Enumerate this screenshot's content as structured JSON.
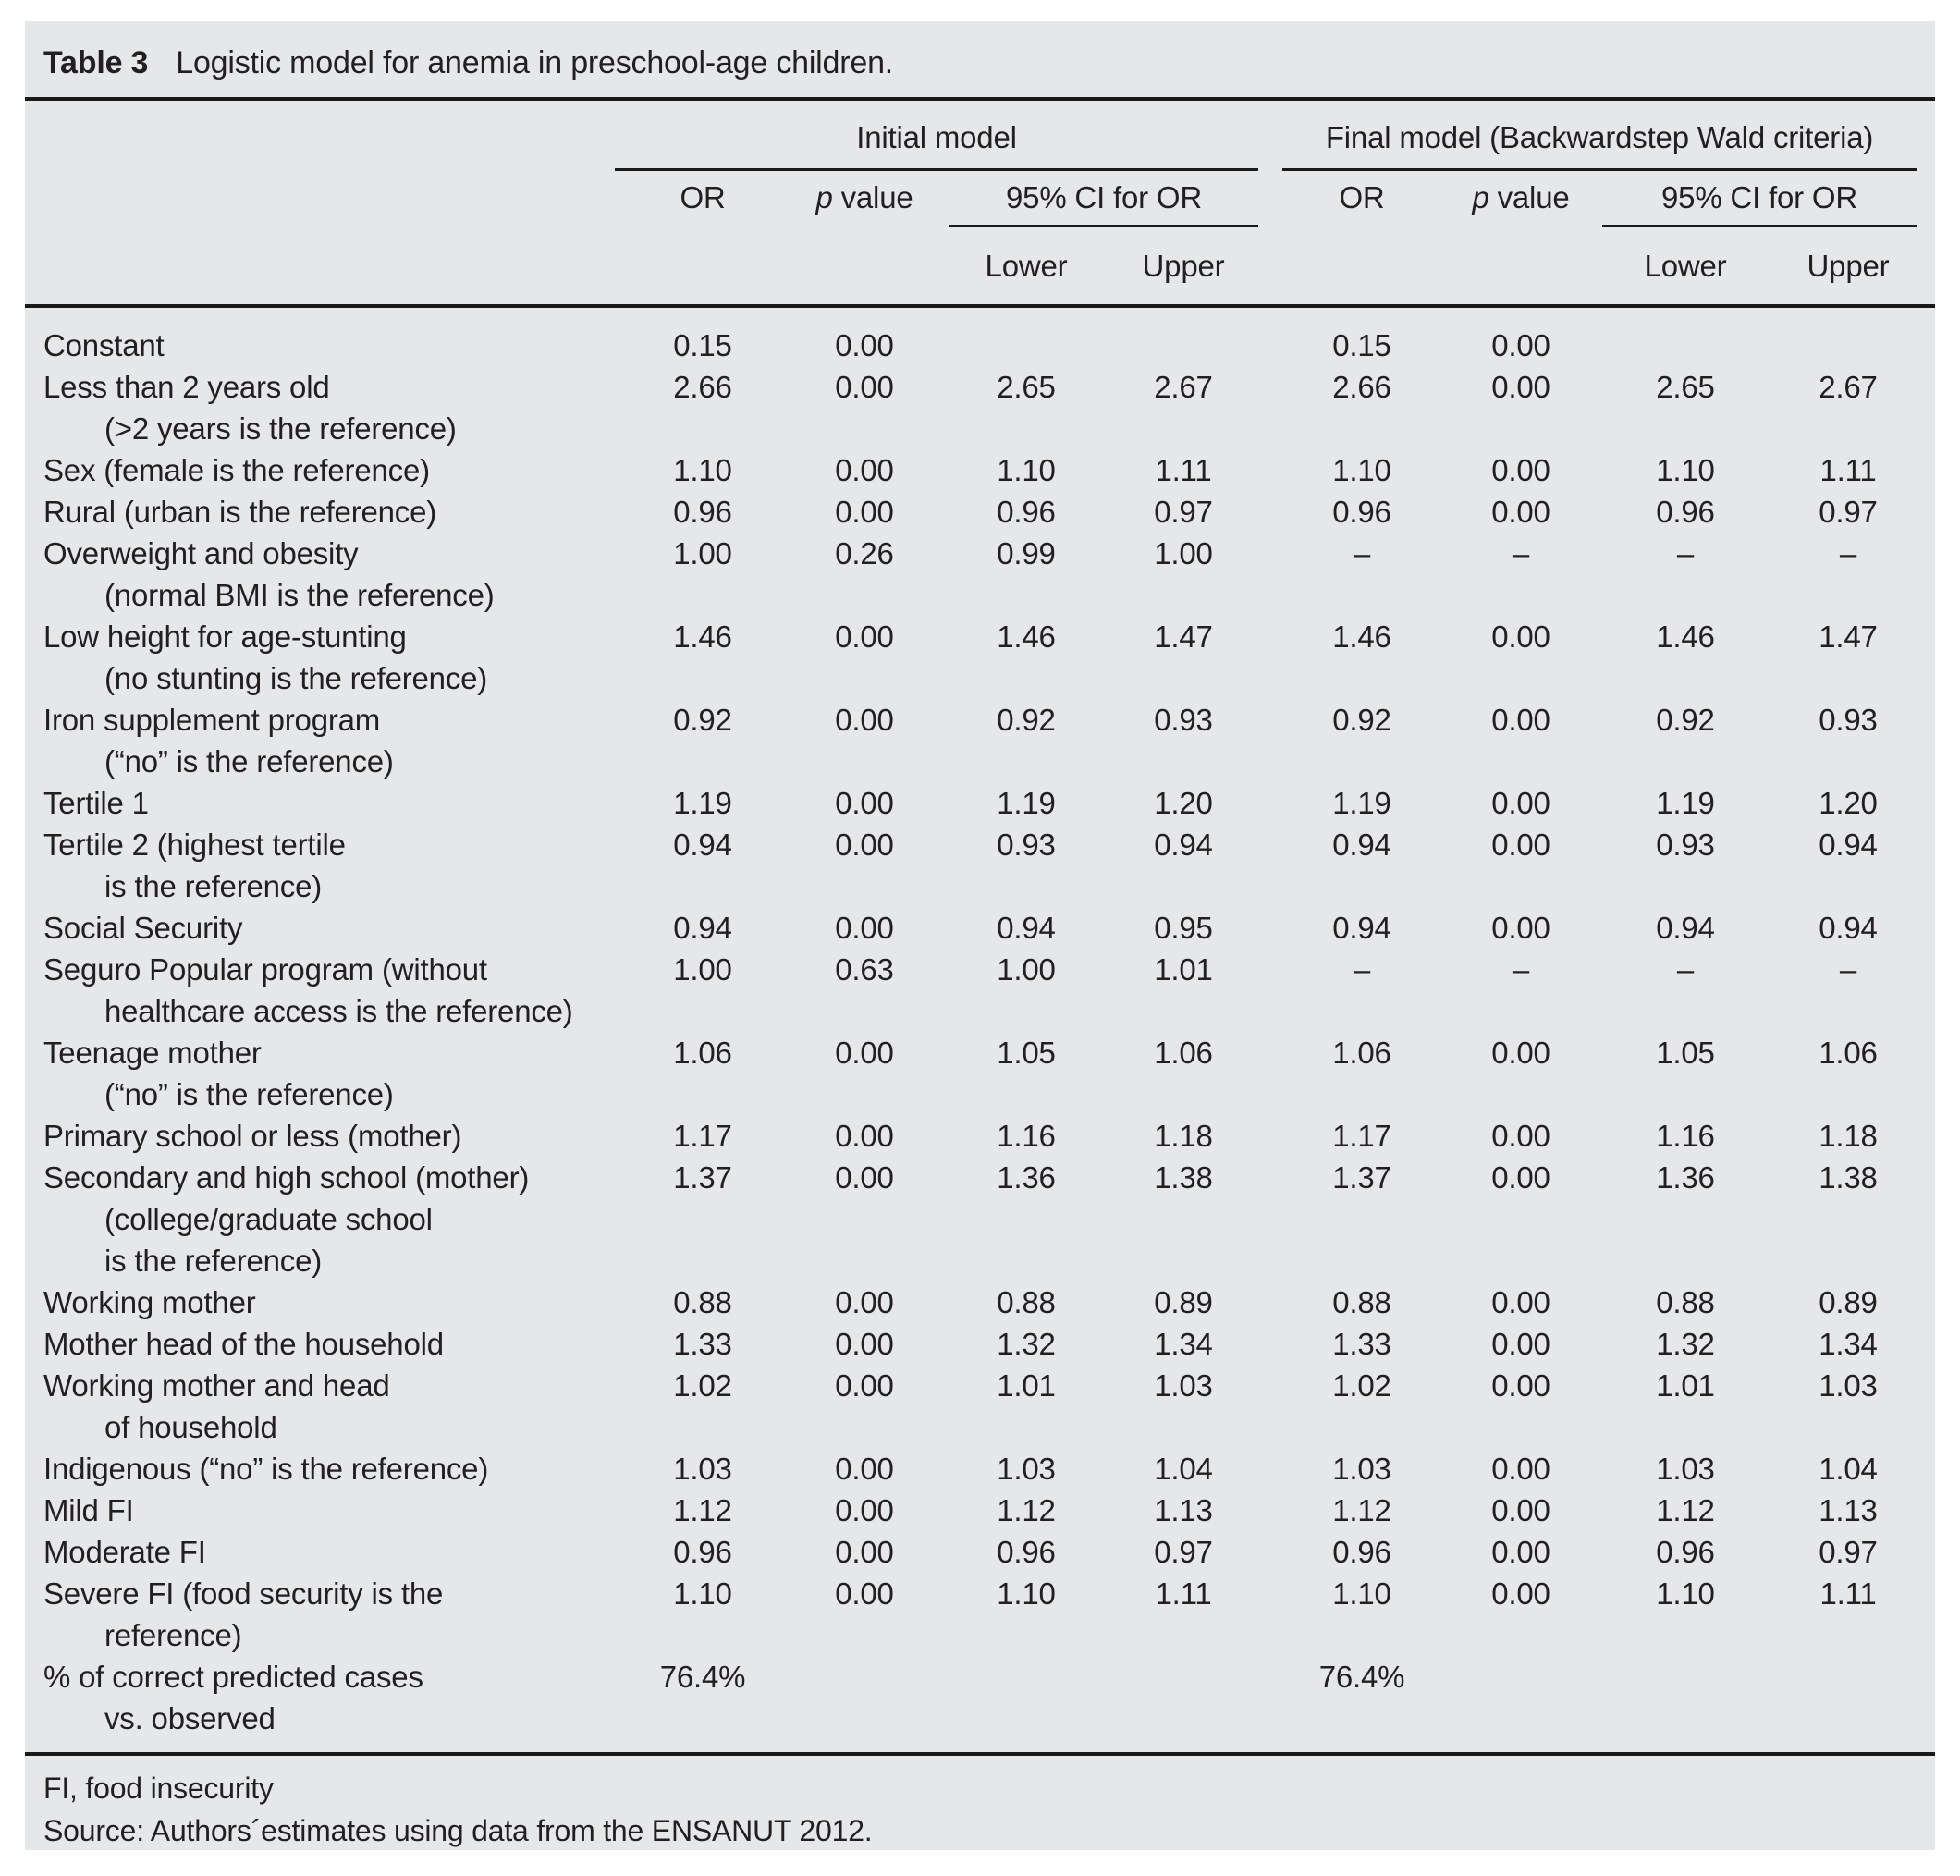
{
  "colors": {
    "panel_bg": "#e6e7e8",
    "text": "#231f20",
    "rule": "#1a1a1a"
  },
  "title": {
    "label": "Table 3",
    "text": "Logistic model for anemia in preschool-age children."
  },
  "header": {
    "group_initial": "Initial model",
    "group_final": "Final model (Backwardstep Wald criteria)",
    "or": "OR",
    "p_label": "p",
    "p_suffix": " value",
    "ci": "95% CI for OR",
    "lower": "Lower",
    "upper": "Upper"
  },
  "rows": [
    {
      "label_lines": [
        "Constant"
      ],
      "initial": [
        "0.15",
        "0.00",
        "",
        ""
      ],
      "final": [
        "0.15",
        "0.00",
        "",
        ""
      ]
    },
    {
      "label_lines": [
        "Less than 2 years old",
        "(>2 years is the reference)"
      ],
      "initial": [
        "2.66",
        "0.00",
        "2.65",
        "2.67"
      ],
      "final": [
        "2.66",
        "0.00",
        "2.65",
        "2.67"
      ]
    },
    {
      "label_lines": [
        "Sex (female is the reference)"
      ],
      "initial": [
        "1.10",
        "0.00",
        "1.10",
        "1.11"
      ],
      "final": [
        "1.10",
        "0.00",
        "1.10",
        "1.11"
      ]
    },
    {
      "label_lines": [
        "Rural (urban is the reference)"
      ],
      "initial": [
        "0.96",
        "0.00",
        "0.96",
        "0.97"
      ],
      "final": [
        "0.96",
        "0.00",
        "0.96",
        "0.97"
      ]
    },
    {
      "label_lines": [
        "Overweight and obesity",
        "(normal BMI is the reference)"
      ],
      "initial": [
        "1.00",
        "0.26",
        "0.99",
        "1.00"
      ],
      "final": [
        "–",
        "–",
        "–",
        "–"
      ]
    },
    {
      "label_lines": [
        "Low height for age-stunting",
        "(no stunting is the reference)"
      ],
      "initial": [
        "1.46",
        "0.00",
        "1.46",
        "1.47"
      ],
      "final": [
        "1.46",
        "0.00",
        "1.46",
        "1.47"
      ]
    },
    {
      "label_lines": [
        "Iron supplement program",
        "(“no” is the reference)"
      ],
      "initial": [
        "0.92",
        "0.00",
        "0.92",
        "0.93"
      ],
      "final": [
        "0.92",
        "0.00",
        "0.92",
        "0.93"
      ]
    },
    {
      "label_lines": [
        "Tertile 1"
      ],
      "initial": [
        "1.19",
        "0.00",
        "1.19",
        "1.20"
      ],
      "final": [
        "1.19",
        "0.00",
        "1.19",
        "1.20"
      ]
    },
    {
      "label_lines": [
        "Tertile 2 (highest tertile",
        "is the reference)"
      ],
      "initial": [
        "0.94",
        "0.00",
        "0.93",
        "0.94"
      ],
      "final": [
        "0.94",
        "0.00",
        "0.93",
        "0.94"
      ]
    },
    {
      "label_lines": [
        "Social Security"
      ],
      "initial": [
        "0.94",
        "0.00",
        "0.94",
        "0.95"
      ],
      "final": [
        "0.94",
        "0.00",
        "0.94",
        "0.94"
      ]
    },
    {
      "label_lines": [
        "Seguro Popular program (without",
        "healthcare access is the reference)"
      ],
      "initial": [
        "1.00",
        "0.63",
        "1.00",
        "1.01"
      ],
      "final": [
        "–",
        "–",
        "–",
        "–"
      ]
    },
    {
      "label_lines": [
        "Teenage mother",
        "(“no” is the reference)"
      ],
      "initial": [
        "1.06",
        "0.00",
        "1.05",
        "1.06"
      ],
      "final": [
        "1.06",
        "0.00",
        "1.05",
        "1.06"
      ]
    },
    {
      "label_lines": [
        "Primary school or less (mother)"
      ],
      "initial": [
        "1.17",
        "0.00",
        "1.16",
        "1.18"
      ],
      "final": [
        "1.17",
        "0.00",
        "1.16",
        "1.18"
      ]
    },
    {
      "label_lines": [
        "Secondary and high school (mother)",
        "(college/graduate school",
        "is the reference)"
      ],
      "initial": [
        "1.37",
        "0.00",
        "1.36",
        "1.38"
      ],
      "final": [
        "1.37",
        "0.00",
        "1.36",
        "1.38"
      ]
    },
    {
      "label_lines": [
        "Working mother"
      ],
      "initial": [
        "0.88",
        "0.00",
        "0.88",
        "0.89"
      ],
      "final": [
        "0.88",
        "0.00",
        "0.88",
        "0.89"
      ]
    },
    {
      "label_lines": [
        "Mother head of the household"
      ],
      "initial": [
        "1.33",
        "0.00",
        "1.32",
        "1.34"
      ],
      "final": [
        "1.33",
        "0.00",
        "1.32",
        "1.34"
      ]
    },
    {
      "label_lines": [
        "Working mother and head",
        "of household"
      ],
      "initial": [
        "1.02",
        "0.00",
        "1.01",
        "1.03"
      ],
      "final": [
        "1.02",
        "0.00",
        "1.01",
        "1.03"
      ]
    },
    {
      "label_lines": [
        "Indigenous (“no” is the reference)"
      ],
      "initial": [
        "1.03",
        "0.00",
        "1.03",
        "1.04"
      ],
      "final": [
        "1.03",
        "0.00",
        "1.03",
        "1.04"
      ]
    },
    {
      "label_lines": [
        "Mild FI"
      ],
      "initial": [
        "1.12",
        "0.00",
        "1.12",
        "1.13"
      ],
      "final": [
        "1.12",
        "0.00",
        "1.12",
        "1.13"
      ]
    },
    {
      "label_lines": [
        "Moderate FI"
      ],
      "initial": [
        "0.96",
        "0.00",
        "0.96",
        "0.97"
      ],
      "final": [
        "0.96",
        "0.00",
        "0.96",
        "0.97"
      ]
    },
    {
      "label_lines": [
        "Severe FI (food security is the",
        "reference)"
      ],
      "initial": [
        "1.10",
        "0.00",
        "1.10",
        "1.11"
      ],
      "final": [
        "1.10",
        "0.00",
        "1.10",
        "1.11"
      ]
    },
    {
      "label_lines": [
        "% of correct predicted cases",
        "vs. observed"
      ],
      "initial": [
        "76.4%",
        "",
        "",
        ""
      ],
      "final": [
        "76.4%",
        "",
        "",
        ""
      ]
    }
  ],
  "footnotes": {
    "abbrev": "FI, food insecurity",
    "source": "Source: Authors´estimates using data from the ENSANUT 2012."
  }
}
